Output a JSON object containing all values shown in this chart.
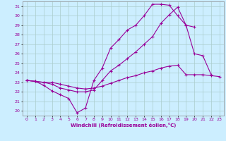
{
  "title": "",
  "xlabel": "Windchill (Refroidissement éolien,°C)",
  "bg_color": "#cceeff",
  "line_color": "#990099",
  "grid_color": "#aacccc",
  "xlim": [
    -0.5,
    23.5
  ],
  "ylim": [
    19.5,
    31.5
  ],
  "yticks": [
    20,
    21,
    22,
    23,
    24,
    25,
    26,
    27,
    28,
    29,
    30,
    31
  ],
  "xticks": [
    0,
    1,
    2,
    3,
    4,
    5,
    6,
    7,
    8,
    9,
    10,
    11,
    12,
    13,
    14,
    15,
    16,
    17,
    18,
    19,
    20,
    21,
    22,
    23
  ],
  "series": [
    [
      23.2,
      23.1,
      22.7,
      22.1,
      21.7,
      21.3,
      19.8,
      20.3,
      23.2,
      24.5,
      26.6,
      27.5,
      28.5,
      29.0,
      30.0,
      31.2,
      31.2,
      31.1,
      30.0,
      29.0,
      26.0,
      25.8,
      23.8,
      null
    ],
    [
      23.2,
      23.1,
      23.0,
      22.8,
      22.4,
      22.2,
      22.0,
      22.0,
      22.2,
      23.2,
      24.2,
      24.8,
      25.5,
      26.2,
      27.0,
      27.8,
      29.2,
      30.1,
      30.9,
      29.0,
      28.8,
      null,
      null,
      null
    ],
    [
      23.2,
      23.1,
      23.0,
      23.0,
      22.8,
      22.6,
      22.4,
      22.3,
      22.4,
      22.6,
      22.9,
      23.2,
      23.5,
      23.7,
      24.0,
      24.2,
      24.5,
      24.7,
      24.8,
      23.8,
      23.8,
      23.8,
      23.7,
      23.6
    ]
  ]
}
